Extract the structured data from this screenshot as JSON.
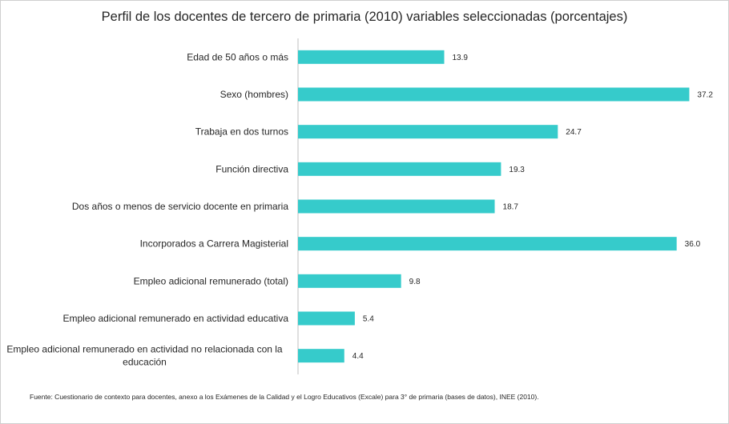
{
  "title": "Perfil de los docentes de tercero de primaria (2010) variables seleccionadas (porcentajes)",
  "source": "Fuente: Cuestionario de contexto para docentes, anexo a los Exámenes de la Calidad y el Logro Educativos (Excale) para 3° de primaria (bases de datos), INEE (2010).",
  "colors": {
    "bar": "#36CBCB",
    "axis": "#BFBFBF",
    "text": "#262626"
  },
  "chart_data": {
    "type": "bar",
    "orientation": "horizontal",
    "title": "Perfil de los docentes de tercero de primaria (2010) variables seleccionadas (porcentajes)",
    "categories": [
      "Edad de 50 años o más",
      "Sexo (hombres)",
      "Trabaja en dos turnos",
      "Función directiva",
      "Dos años o menos de servicio docente en primaria",
      "Incorporados a Carrera Magisterial",
      "Empleo adicional remunerado (total)",
      "Empleo adicional remunerado en actividad educativa",
      "Empleo adicional remunerado en actividad no relacionada con la educación"
    ],
    "values": [
      13.9,
      37.2,
      24.7,
      19.3,
      18.7,
      36.0,
      9.8,
      5.4,
      4.4
    ],
    "value_labels": [
      "13.9",
      "37.2",
      "24.7",
      "19.3",
      "18.7",
      "36.0",
      "9.8",
      "5.4",
      "4.4"
    ],
    "xlim": [
      0,
      40
    ],
    "grid": false,
    "legend": "none"
  }
}
